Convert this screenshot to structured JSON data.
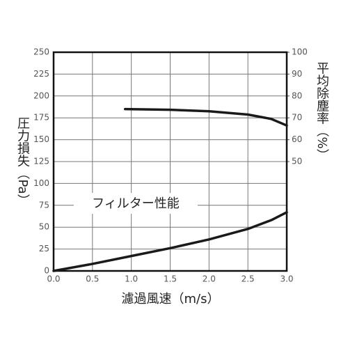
{
  "chart_data": {
    "type": "line",
    "x_label": "濾過風速（m/s）",
    "y_label": "圧力損失（Pa）",
    "y2_label": "平均除塵率（%）",
    "annotation": "フィルター性能",
    "xlim": [
      0,
      3.0
    ],
    "xticks": [
      {
        "value": 0,
        "label": "0.0"
      },
      {
        "value": 0.5,
        "label": "0.5"
      },
      {
        "value": 1,
        "label": "1.0"
      },
      {
        "value": 1.5,
        "label": "1.5"
      },
      {
        "value": 2,
        "label": "2.0"
      },
      {
        "value": 2.5,
        "label": "2.5"
      },
      {
        "value": 3,
        "label": "3.0"
      }
    ],
    "ylim": [
      0,
      250
    ],
    "yticks": [
      0,
      25,
      50,
      75,
      100,
      125,
      150,
      175,
      200,
      225,
      250
    ],
    "y2lim": [
      0,
      100
    ],
    "y2ticks": [
      50,
      60,
      70,
      80,
      90,
      100
    ],
    "grid": true,
    "series": [
      {
        "color": "#1a1a1a",
        "x": [
          0,
          0.5,
          1.0,
          1.5,
          2.0,
          2.5,
          2.8,
          3.0
        ],
        "values": [
          0,
          8,
          17,
          26,
          36,
          48,
          58,
          67
        ]
      },
      {
        "color": "#1a1a1a",
        "axis": "y2",
        "x": [
          0.92,
          1.5,
          2.0,
          2.5,
          2.8,
          3.0
        ],
        "values": [
          74,
          73.7,
          73,
          71.5,
          69.5,
          66.5
        ]
      }
    ]
  }
}
